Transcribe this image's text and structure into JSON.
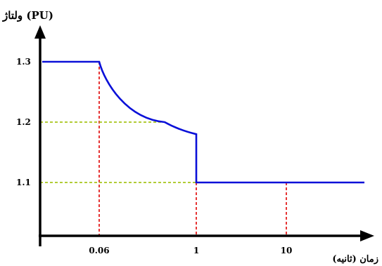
{
  "chart_data": {
    "type": "line",
    "title": "",
    "ylabel": "ولتاژ (PU)",
    "xlabel": "زمان (ثانیه)",
    "x_tick_labels": [
      "0.06",
      "1",
      "10"
    ],
    "y_tick_labels": [
      "1.1",
      "1.2",
      "1.3"
    ],
    "x_scale": "log",
    "ylim": [
      1.0,
      1.35
    ],
    "grid": false,
    "series": [
      {
        "color": "#0a10d8",
        "points": [
          {
            "x": 0.001,
            "y": 1.3
          },
          {
            "x": 0.06,
            "y": 1.3
          },
          {
            "x": 0.1,
            "y": 1.255
          },
          {
            "x": 0.2,
            "y": 1.225
          },
          {
            "x": 0.4,
            "y": 1.2
          },
          {
            "x": 1,
            "y": 1.18
          },
          {
            "x": 1,
            "y": 1.1
          },
          {
            "x": 10,
            "y": 1.1
          },
          {
            "x": 100,
            "y": 1.1
          }
        ]
      }
    ],
    "guides": {
      "vertical": [
        {
          "x": 0.06,
          "y_top": 1.3,
          "color": "#e41f1f"
        },
        {
          "x": 1,
          "y_top": 1.1,
          "color": "#e41f1f"
        },
        {
          "x": 10,
          "y_top": 1.1,
          "color": "#e41f1f"
        }
      ],
      "horizontal": [
        {
          "y": 1.2,
          "x_end": 0.4,
          "color": "#a8c51a"
        },
        {
          "y": 1.1,
          "x_end": 1,
          "color": "#a8c51a"
        }
      ]
    }
  }
}
